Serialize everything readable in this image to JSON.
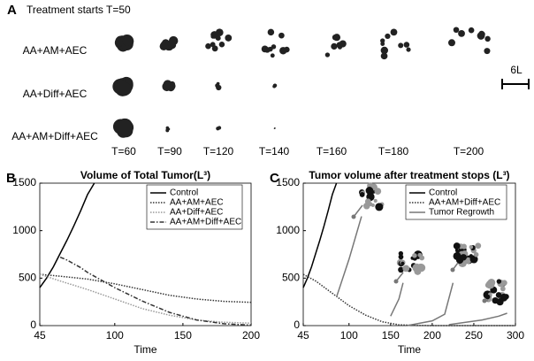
{
  "panel_a": {
    "label": "A",
    "title": "Treatment starts T=50",
    "rows": [
      "AA+AM+AEC",
      "AA+Diff+AEC",
      "AA+AM+Diff+AEC"
    ],
    "times": [
      "T=60",
      "T=90",
      "T=120",
      "T=140",
      "T=160",
      "T=180",
      "T=200"
    ],
    "scale": "6L"
  },
  "chart_data": [
    {
      "type": "line",
      "panel": "B",
      "title": "Volume of Total Tumor(L³)",
      "x_label": "Time",
      "xlim": [
        45,
        200
      ],
      "xticks": [
        45,
        100,
        150,
        200
      ],
      "ylim": [
        0,
        1500
      ],
      "yticks": [
        0,
        500,
        1000,
        1500
      ],
      "legend": "upper right",
      "series": [
        {
          "name": "Control",
          "color": "#000000",
          "style": "solid",
          "x": [
            45,
            50,
            55,
            60,
            65,
            70,
            75,
            80,
            85
          ],
          "values": [
            400,
            500,
            620,
            760,
            900,
            1050,
            1210,
            1380,
            1500
          ]
        },
        {
          "name": "AA+AM+AEC",
          "color": "#333333",
          "style": "dotted",
          "x": [
            45,
            60,
            80,
            100,
            120,
            140,
            160,
            180,
            200
          ],
          "values": [
            540,
            520,
            490,
            440,
            380,
            320,
            280,
            255,
            245
          ]
        },
        {
          "name": "AA+Diff+AEC",
          "color": "#999999",
          "style": "dotted",
          "x": [
            45,
            60,
            80,
            100,
            120,
            140,
            160,
            180,
            200
          ],
          "values": [
            540,
            470,
            380,
            280,
            180,
            110,
            60,
            35,
            25
          ]
        },
        {
          "name": "AA+AM+Diff+AEC",
          "color": "#333333",
          "style": "dashdot",
          "x": [
            60,
            65,
            70,
            75,
            80,
            85,
            100,
            120,
            140,
            160,
            180,
            200
          ],
          "values": [
            720,
            690,
            650,
            610,
            560,
            520,
            400,
            260,
            140,
            60,
            20,
            5
          ]
        }
      ]
    },
    {
      "type": "line",
      "panel": "C",
      "title": "Tumor volume after treatment stops (L³)",
      "x_label": "Time",
      "xlim": [
        45,
        300
      ],
      "xticks": [
        45,
        100,
        150,
        200,
        250,
        300
      ],
      "ylim": [
        0,
        1500
      ],
      "yticks": [
        0,
        500,
        1000,
        1500
      ],
      "legend": "upper right",
      "series": [
        {
          "name": "Control",
          "color": "#000000",
          "style": "solid",
          "x": [
            45,
            50,
            55,
            60,
            65,
            70,
            75,
            80,
            85
          ],
          "values": [
            400,
            500,
            620,
            760,
            900,
            1050,
            1210,
            1380,
            1500
          ]
        },
        {
          "name": "AA+AM+Diff+AEC",
          "color": "#333333",
          "style": "dotted",
          "x": [
            45,
            60,
            80,
            100,
            120,
            140,
            160,
            180,
            200,
            250,
            300
          ],
          "values": [
            540,
            470,
            340,
            210,
            110,
            40,
            8,
            2,
            0,
            0,
            0
          ]
        },
        {
          "name": "Tumor Regrowth",
          "color": "#777777",
          "style": "solid",
          "x": [
            85,
            100,
            115,
            null,
            150,
            160,
            165,
            null,
            170,
            200,
            215,
            225,
            null,
            220,
            260,
            280,
            290
          ],
          "values": [
            300,
            700,
            1150,
            null,
            100,
            280,
            450,
            null,
            0,
            50,
            120,
            450,
            null,
            10,
            60,
            100,
            130
          ]
        }
      ]
    }
  ]
}
